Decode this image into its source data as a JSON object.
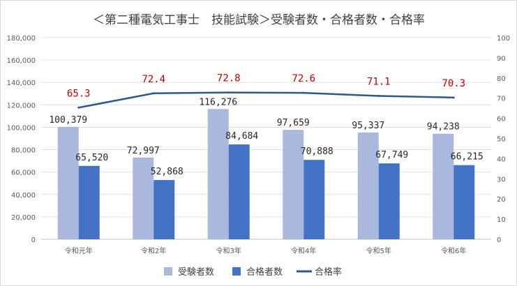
{
  "chart_data": {
    "type": "bar",
    "title": "＜第二種電気工事士　技能試験＞受験者数・合格者数・合格率",
    "categories": [
      "令和元年",
      "令和2年",
      "令和3年",
      "令和4年",
      "令和5年",
      "令和6年"
    ],
    "series": [
      {
        "name": "受験者数",
        "type": "bar",
        "axis": "left",
        "color": "#a9b8dc",
        "values": [
          100379,
          72997,
          116276,
          97659,
          95337,
          94238
        ],
        "labels": [
          "100,379",
          "72,997",
          "116,276",
          "97,659",
          "95,337",
          "94,238"
        ]
      },
      {
        "name": "合格者数",
        "type": "bar",
        "axis": "left",
        "color": "#4472c4",
        "values": [
          65520,
          52868,
          84684,
          70888,
          67749,
          66215
        ],
        "labels": [
          "65,520",
          "52,868",
          "84,684",
          "70,888",
          "67,749",
          "66,215"
        ]
      },
      {
        "name": "合格率",
        "type": "line",
        "axis": "right",
        "color": "#2f5597",
        "label_color": "#c00000",
        "values": [
          65.3,
          72.4,
          72.8,
          72.6,
          71.1,
          70.3
        ],
        "labels": [
          "65.3",
          "72.4",
          "72.8",
          "72.6",
          "71.1",
          "70.3"
        ]
      }
    ],
    "y_left": {
      "min": 0,
      "max": 180000,
      "step": 20000,
      "ticks": [
        "0",
        "20,000",
        "40,000",
        "60,000",
        "80,000",
        "100,000",
        "120,000",
        "140,000",
        "160,000",
        "180,000"
      ]
    },
    "y_right": {
      "min": 0,
      "max": 100,
      "step": 10,
      "ticks": [
        "0",
        "10",
        "20",
        "30",
        "40",
        "50",
        "60",
        "70",
        "80",
        "90",
        "100"
      ]
    },
    "grid": true,
    "legend_position": "bottom"
  }
}
